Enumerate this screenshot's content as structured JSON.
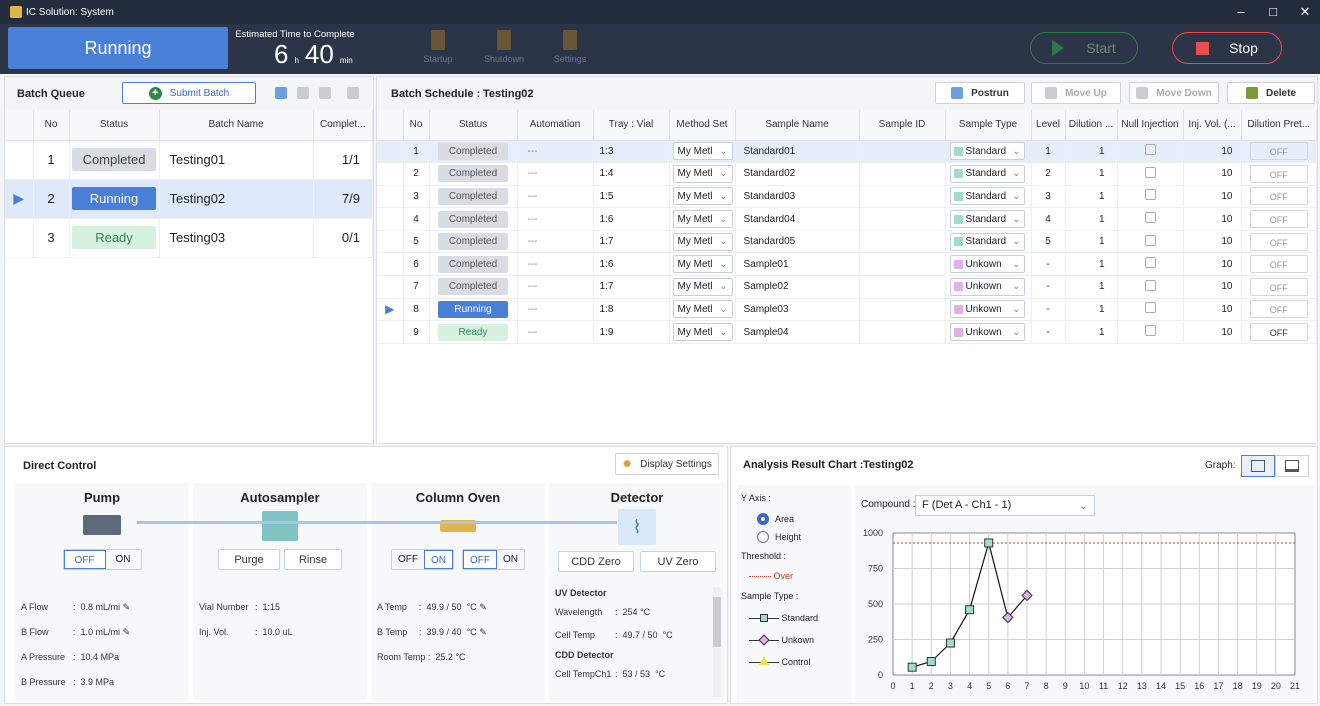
{
  "window": {
    "title": "IC Solution: System",
    "minimize": "–",
    "maximize": "□",
    "close": "✕"
  },
  "toolbar": {
    "status": "Running",
    "etc_label": "Estimated Time to Complete",
    "etc_hours": "6",
    "etc_h_unit": "h",
    "etc_minutes": "40",
    "etc_min_unit": "min",
    "startup": "Startup",
    "shutdown": "Shutdown",
    "settings": "Settings",
    "start": "Start",
    "stop": "Stop"
  },
  "batch_queue": {
    "title": "Batch Queue",
    "submit": "Submit Batch",
    "columns": [
      "No",
      "Status",
      "Batch Name",
      "Complet..."
    ],
    "rows": [
      {
        "no": "1",
        "status": "Completed",
        "name": "Testing01",
        "complete": "1/1"
      },
      {
        "no": "2",
        "status": "Running",
        "name": "Testing02",
        "complete": "7/9"
      },
      {
        "no": "3",
        "status": "Ready",
        "name": "Testing03",
        "complete": "0/1"
      }
    ]
  },
  "batch_schedule": {
    "title": "Batch Schedule :",
    "batch_name": "Testing02",
    "postrun": "Postrun",
    "move_up": "Move Up",
    "move_down": "Move Down",
    "delete": "Delete",
    "columns": [
      "No",
      "Status",
      "Automation",
      "Tray : Vial",
      "Method Set",
      "Sample Name",
      "Sample ID",
      "Sample Type",
      "Level",
      "Dilution ...",
      "Null Injection",
      "Inj. Vol. (...",
      "Dilution Pret..."
    ],
    "rows": [
      {
        "no": "1",
        "status": "Completed",
        "auto": "---",
        "tray": "1:3",
        "method": "My Metl",
        "name": "Standard01",
        "id": "",
        "type": "Standard",
        "level": "1",
        "dil": "1",
        "inj": "10",
        "pret": "OFF"
      },
      {
        "no": "2",
        "status": "Completed",
        "auto": "---",
        "tray": "1:4",
        "method": "My Metl",
        "name": "Standard02",
        "id": "",
        "type": "Standard",
        "level": "2",
        "dil": "1",
        "inj": "10",
        "pret": "OFF"
      },
      {
        "no": "3",
        "status": "Completed",
        "auto": "---",
        "tray": "1:5",
        "method": "My Metl",
        "name": "Standard03",
        "id": "",
        "type": "Standard",
        "level": "3",
        "dil": "1",
        "inj": "10",
        "pret": "OFF"
      },
      {
        "no": "4",
        "status": "Completed",
        "auto": "---",
        "tray": "1:6",
        "method": "My Metl",
        "name": "Standard04",
        "id": "",
        "type": "Standard",
        "level": "4",
        "dil": "1",
        "inj": "10",
        "pret": "OFF"
      },
      {
        "no": "5",
        "status": "Completed",
        "auto": "---",
        "tray": "1:7",
        "method": "My Metl",
        "name": "Standard05",
        "id": "",
        "type": "Standard",
        "level": "5",
        "dil": "1",
        "inj": "10",
        "pret": "OFF"
      },
      {
        "no": "6",
        "status": "Completed",
        "auto": "---",
        "tray": "1:6",
        "method": "My Metl",
        "name": "Sample01",
        "id": "",
        "type": "Unkown",
        "level": "-",
        "dil": "1",
        "inj": "10",
        "pret": "OFF"
      },
      {
        "no": "7",
        "status": "Completed",
        "auto": "---",
        "tray": "1:7",
        "method": "My Metl",
        "name": "Sample02",
        "id": "",
        "type": "Unkown",
        "level": "-",
        "dil": "1",
        "inj": "10",
        "pret": "OFF"
      },
      {
        "no": "8",
        "status": "Running",
        "auto": "---",
        "tray": "1:8",
        "method": "My Metl",
        "name": "Sample03",
        "id": "",
        "type": "Unkown",
        "level": "-",
        "dil": "1",
        "inj": "10",
        "pret": "OFF"
      },
      {
        "no": "9",
        "status": "Ready",
        "auto": "---",
        "tray": "1:9",
        "method": "My Metl",
        "name": "Sample04",
        "id": "",
        "type": "Unkown",
        "level": "-",
        "dil": "1",
        "inj": "10",
        "pret": "OFF"
      }
    ]
  },
  "direct_control": {
    "title": "Direct Control",
    "display_settings": "Display Settings",
    "pump": {
      "title": "Pump",
      "off": "OFF",
      "on": "ON",
      "a_flow_label": "A Flow",
      "a_flow": "0.8",
      "a_flow_unit": "mL/mi",
      "b_flow_label": "B Flow",
      "b_flow": "1.0",
      "b_flow_unit": "mL/mi",
      "a_pressure_label": "A Pressure",
      "a_pressure": "10.4",
      "a_pressure_unit": "MPa",
      "b_pressure_label": "B Pressure",
      "b_pressure": "3.9",
      "b_pressure_unit": "MPa"
    },
    "autosampler": {
      "title": "Autosampler",
      "purge": "Purge",
      "rinse": "Rinse",
      "vial_label": "Vial Number",
      "vial": "1:15",
      "inj_label": "Inj. Vol.",
      "inj": "10.0",
      "inj_unit": "uL"
    },
    "oven": {
      "title": "Column Oven",
      "off": "OFF",
      "on": "ON",
      "a_temp_label": "A Temp",
      "a_temp": "49.9 / 50",
      "a_unit": "°C",
      "b_temp_label": "B Temp",
      "b_temp": "39.9 / 40",
      "b_unit": "°C",
      "room_label": "Room Temp",
      "room": "25.2",
      "room_unit": "°C"
    },
    "detector": {
      "title": "Detector",
      "cdd_zero": "CDD Zero",
      "uv_zero": "UV Zero",
      "uv_title": "UV Detector",
      "wl_label": "Wavelength",
      "wl": "254",
      "wl_unit": "°C",
      "cell_label": "Cell Temp",
      "cell": "49.7 / 50",
      "cell_unit": "°C",
      "cdd_title": "CDD Detector",
      "ch1_label": "Cell TempCh1",
      "ch1": "53 / 53",
      "ch1_unit": "°C"
    }
  },
  "analysis": {
    "title": "Analysis Result Chart :",
    "batch": "Testing02",
    "graph_label": "Graph:",
    "y_axis_label": "Y Axis :",
    "area": "Area",
    "height": "Height",
    "threshold_label": "Threshold :",
    "over": "Over",
    "sample_type_label": "Sample Type :",
    "standard": "Standard",
    "unkown": "Unkown",
    "control": "Control",
    "compound_label": "Compound :",
    "compound": "F (Det A - Ch1 - 1)"
  },
  "colors": {
    "accent": "#4a7fd7",
    "stop": "#e84c4c",
    "threshold": "#c0392b",
    "standard": "#9fdccb",
    "unknown": "#e0b0ea",
    "control": "#f1e14a"
  },
  "chart_data": {
    "type": "line",
    "x_ticks": [
      0,
      1,
      2,
      3,
      4,
      5,
      6,
      7,
      8,
      9,
      10,
      11,
      12,
      13,
      14,
      15,
      16,
      17,
      18,
      19,
      20,
      21
    ],
    "y_ticks": [
      0,
      250,
      500,
      750,
      1000
    ],
    "xlim": [
      0,
      21
    ],
    "ylim": [
      0,
      1000
    ],
    "threshold": 930,
    "series": [
      {
        "name": "Standard",
        "x": [
          1,
          2,
          3,
          4,
          5
        ],
        "y": [
          55,
          95,
          225,
          460,
          930
        ]
      },
      {
        "name": "Unkown",
        "x": [
          6,
          7
        ],
        "y": [
          405,
          560
        ]
      }
    ]
  }
}
